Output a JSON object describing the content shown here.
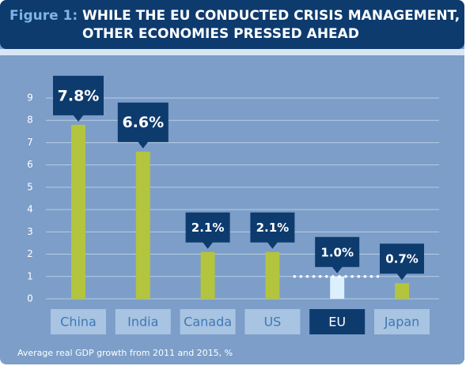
{
  "chart_data": {
    "type": "bar",
    "label": "Figure 1:",
    "title": [
      "WHILE THE EU CONDUCTED CRISIS MANAGEMENT,",
      "OTHER ECONOMIES PRESSED AHEAD"
    ],
    "categories": [
      "China",
      "India",
      "Canada",
      "US",
      "EU",
      "Japan"
    ],
    "values": [
      7.8,
      6.6,
      2.1,
      2.1,
      1.0,
      0.7
    ],
    "value_labels": [
      "7.8%",
      "6.6%",
      "2.1%",
      "2.1%",
      "1.0%",
      "0.7%"
    ],
    "bar_colors": [
      "#b3c43e",
      "#b3c43e",
      "#b3c43e",
      "#b3c43e",
      "#dcefff",
      "#b3c43e"
    ],
    "label_box_colors": [
      "#a8c4e2",
      "#a8c4e2",
      "#a8c4e2",
      "#a8c4e2",
      "#0e3b6e",
      "#a8c4e2"
    ],
    "ylim": [
      0,
      9
    ],
    "yticks": [
      0,
      1,
      2,
      3,
      4,
      5,
      6,
      7,
      8,
      9
    ],
    "grid": true,
    "note": "Average real GDP growth from 2011 and 2015, %"
  }
}
